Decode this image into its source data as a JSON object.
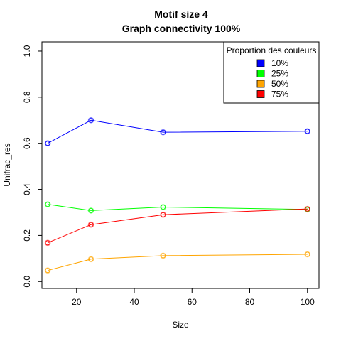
{
  "chart_data": {
    "type": "line",
    "title": "Motif size 4",
    "subtitle": "Graph connectivity 100%",
    "xlabel": "Size",
    "ylabel": "Unifrac_res",
    "xlim": [
      8,
      104
    ],
    "ylim": [
      -0.03,
      1.04
    ],
    "xticks": [
      20,
      40,
      60,
      80,
      100
    ],
    "yticks": [
      0.0,
      0.2,
      0.4,
      0.6,
      0.8,
      1.0
    ],
    "xtick_labels": [
      "20",
      "40",
      "60",
      "80",
      "100"
    ],
    "ytick_labels": [
      "0.0",
      "0.2",
      "0.4",
      "0.6",
      "0.8",
      "1.0"
    ],
    "grid": false,
    "legend": {
      "title": "Proportion des couleurs",
      "placement": "top-right",
      "entries": [
        "10%",
        "25%",
        "50%",
        "75%"
      ]
    },
    "x": [
      10,
      25,
      50,
      100
    ],
    "series": [
      {
        "name": "10%",
        "color": "#0000ff",
        "values": [
          0.6,
          0.7,
          0.648,
          0.652
        ]
      },
      {
        "name": "25%",
        "color": "#00ff00",
        "values": [
          0.335,
          0.308,
          0.323,
          0.313
        ]
      },
      {
        "name": "50%",
        "color": "#ffa500",
        "values": [
          0.048,
          0.097,
          0.112,
          0.118
        ]
      },
      {
        "name": "75%",
        "color": "#ff0000",
        "values": [
          0.168,
          0.247,
          0.29,
          0.315
        ]
      }
    ]
  }
}
